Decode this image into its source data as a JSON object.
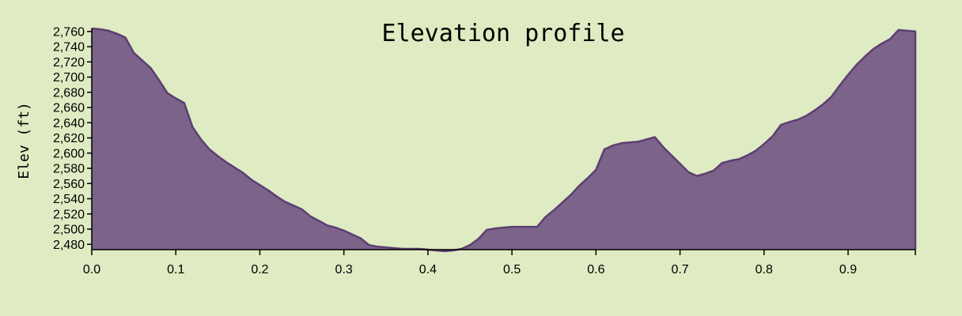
{
  "chart_data": {
    "type": "area",
    "title": "Elevation profile",
    "xlabel": "",
    "ylabel": "Elev (ft)",
    "xlim": [
      0,
      0.98
    ],
    "ylim": [
      2473,
      2764
    ],
    "grid": false,
    "xticks": [
      0.0,
      0.1,
      0.2,
      0.3,
      0.4,
      0.5,
      0.6,
      0.7,
      0.8,
      0.9
    ],
    "xtick_labels": [
      "0.0",
      "0.1",
      "0.2",
      "0.3",
      "0.4",
      "0.5",
      "0.6",
      "0.7",
      "0.8",
      "0.9"
    ],
    "yticks": [
      2480,
      2500,
      2520,
      2540,
      2560,
      2580,
      2600,
      2620,
      2640,
      2660,
      2680,
      2700,
      2720,
      2740,
      2760
    ],
    "ytick_labels": [
      "2,480",
      "2,500",
      "2,520",
      "2,540",
      "2,560",
      "2,580",
      "2,600",
      "2,620",
      "2,640",
      "2,660",
      "2,680",
      "2,700",
      "2,720",
      "2,740",
      "2,760"
    ],
    "fill_color": "#7b6389",
    "line_color": "#5c3f72",
    "background_color": "#dfebc2",
    "series": [
      {
        "x": [
          0.0,
          0.01,
          0.02,
          0.03,
          0.04,
          0.05,
          0.06,
          0.07,
          0.08,
          0.09,
          0.1,
          0.11,
          0.12,
          0.13,
          0.14,
          0.15,
          0.16,
          0.17,
          0.18,
          0.19,
          0.2,
          0.21,
          0.22,
          0.23,
          0.24,
          0.25,
          0.26,
          0.27,
          0.28,
          0.29,
          0.3,
          0.31,
          0.32,
          0.33,
          0.34,
          0.35,
          0.36,
          0.37,
          0.38,
          0.39,
          0.4,
          0.41,
          0.42,
          0.43,
          0.44,
          0.45,
          0.46,
          0.47,
          0.48,
          0.49,
          0.5,
          0.51,
          0.52,
          0.53,
          0.54,
          0.55,
          0.56,
          0.57,
          0.58,
          0.59,
          0.6,
          0.61,
          0.62,
          0.63,
          0.64,
          0.65,
          0.66,
          0.67,
          0.68,
          0.69,
          0.7,
          0.71,
          0.72,
          0.73,
          0.74,
          0.75,
          0.76,
          0.77,
          0.78,
          0.79,
          0.8,
          0.81,
          0.82,
          0.83,
          0.84,
          0.85,
          0.86,
          0.87,
          0.88,
          0.89,
          0.9,
          0.91,
          0.92,
          0.93,
          0.94,
          0.95,
          0.96,
          0.97,
          0.98
        ],
        "y": [
          2764,
          2763,
          2761,
          2757,
          2752,
          2732,
          2722,
          2712,
          2696,
          2679,
          2672,
          2666,
          2634,
          2618,
          2605,
          2596,
          2588,
          2581,
          2574,
          2565,
          2558,
          2551,
          2543,
          2536,
          2531,
          2526,
          2517,
          2511,
          2505,
          2502,
          2498,
          2493,
          2488,
          2479,
          2477,
          2476,
          2475,
          2474,
          2474,
          2474,
          2473,
          2472,
          2471,
          2472,
          2474,
          2479,
          2487,
          2499,
          2501,
          2502,
          2503,
          2503,
          2503,
          2503,
          2516,
          2525,
          2535,
          2545,
          2557,
          2567,
          2578,
          2605,
          2610,
          2613,
          2614,
          2615,
          2618,
          2621,
          2608,
          2597,
          2586,
          2575,
          2570,
          2573,
          2577,
          2587,
          2590,
          2592,
          2597,
          2603,
          2612,
          2622,
          2637,
          2641,
          2644,
          2649,
          2656,
          2664,
          2674,
          2689,
          2703,
          2716,
          2727,
          2737,
          2744,
          2750,
          2762,
          2761,
          2760
        ]
      }
    ]
  }
}
